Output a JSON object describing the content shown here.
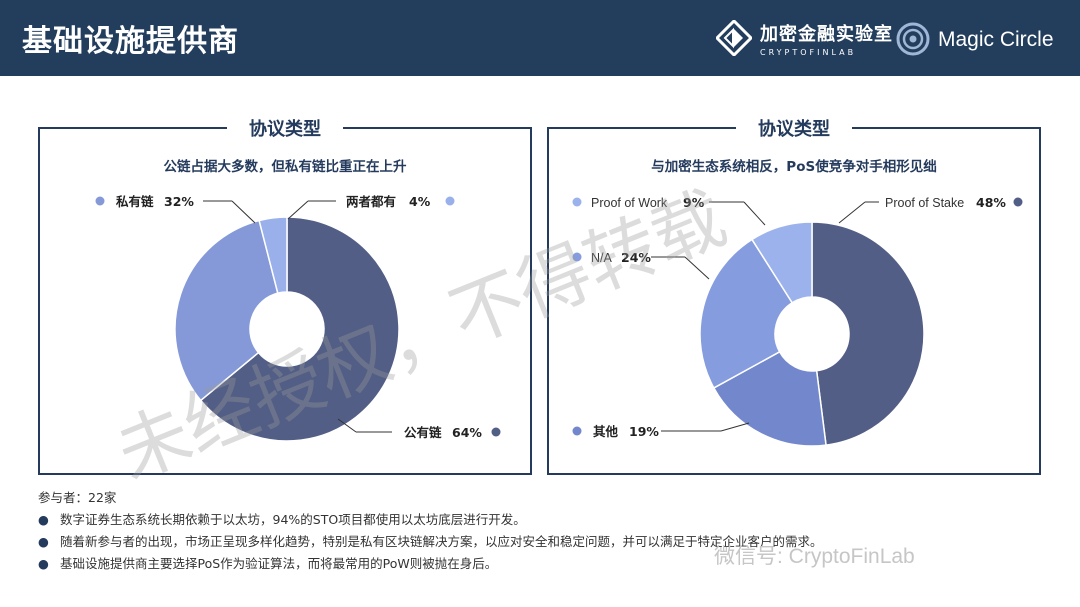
{
  "header": {
    "title": "基础设施提供商",
    "logo1_cn": "加密金融实验室",
    "logo1_en": "CRYPTOFINLAB",
    "logo2_text": "Magic Circle"
  },
  "colors": {
    "header_bg": "#233d5c",
    "navy": "#253b5d",
    "dark_slice": "#525e85",
    "mid_slice": "#6f82c2",
    "light_slice": "#96abe6"
  },
  "chart_data": [
    {
      "type": "pie",
      "title": "协议类型",
      "subtitle": "公链占据大多数，但私有链比重正在上升",
      "donut": true,
      "slices": [
        {
          "name": "公有链",
          "value": 64,
          "label": "64%",
          "color": "#525e85"
        },
        {
          "name": "私有链",
          "value": 32,
          "label": "32%",
          "color": "#8599d9"
        },
        {
          "name": "两者都有",
          "value": 4,
          "label": "4%",
          "color": "#9ab0ea"
        }
      ]
    },
    {
      "type": "pie",
      "title": "协议类型",
      "subtitle": "与加密生态系统相反，PoS使竞争对手相形见绌",
      "donut": true,
      "slices": [
        {
          "name": "Proof of Stake",
          "value": 48,
          "label": "48%",
          "color": "#525e85"
        },
        {
          "name": "其他",
          "value": 19,
          "label": "19%",
          "color": "#7287cc"
        },
        {
          "name": "N/A",
          "value": 24,
          "label": "24%",
          "color": "#859cdf"
        },
        {
          "name": "Proof of Work",
          "value": 9,
          "label": "9%",
          "color": "#9cb2ec"
        }
      ]
    }
  ],
  "footer": {
    "participants": "参与者：22家",
    "bullets": [
      "数字证券生态系统长期依赖于以太坊，94%的STO项目都使用以太坊底层进行开发。",
      "随着新参与者的出现，市场正呈现多样化趋势，特别是私有区块链解决方案，以应对安全和稳定问题，并可以满足于特定企业客户的需求。",
      "基础设施提供商主要选择PoS作为验证算法，而将最常用的PoW则被抛在身后。"
    ]
  },
  "watermark": {
    "text": "未经授权，不得转载",
    "wechat": "微信号: CryptoFinLab"
  }
}
